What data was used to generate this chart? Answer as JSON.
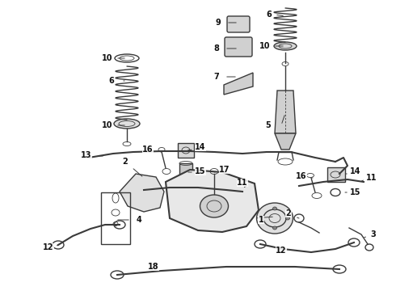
{
  "bg_color": "#ffffff",
  "line_color": "#3a3a3a",
  "fig_width": 4.9,
  "fig_height": 3.6,
  "dpi": 100
}
